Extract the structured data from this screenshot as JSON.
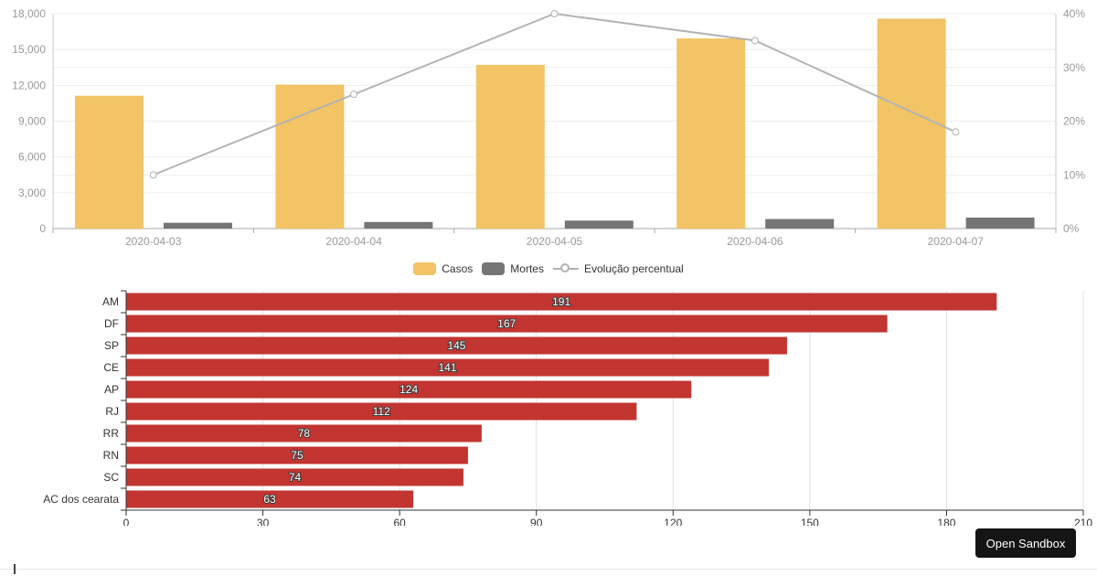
{
  "chart_data": [
    {
      "name": "casos-mortes-combo",
      "type": "bar",
      "subtype": "grouped bars + percentage line (dual axis)",
      "categories": [
        "2020-04-03",
        "2020-04-04",
        "2020-04-05",
        "2020-04-06",
        "2020-04-07"
      ],
      "series": [
        {
          "name": "Casos",
          "type": "bar",
          "axis": "left",
          "color": "#f2c465",
          "values": [
            11130,
            12056,
            13717,
            15927,
            17593
          ]
        },
        {
          "name": "Mortes",
          "type": "bar",
          "axis": "left",
          "color": "#757575",
          "values": [
            486,
            553,
            667,
            800,
            920
          ]
        },
        {
          "name": "Evolução percentual",
          "type": "line",
          "axis": "right",
          "color": "#b3b3b3",
          "marker": "open-circle",
          "values": [
            10,
            25,
            40,
            35,
            18
          ]
        }
      ],
      "left_axis": {
        "min": 0,
        "max": 18000,
        "step": 3000,
        "tick_labels": [
          "0",
          "3,000",
          "6,000",
          "9,000",
          "12,000",
          "15,000",
          "18,000"
        ]
      },
      "right_axis": {
        "min": 0,
        "max": 40,
        "step": 10,
        "tick_labels": [
          "0%",
          "10%",
          "20%",
          "30%",
          "40%"
        ]
      },
      "grid": true,
      "legend_position": "bottom",
      "title": ""
    },
    {
      "name": "states-horizontal-bars",
      "type": "bar",
      "orientation": "horizontal",
      "categories": [
        "AM",
        "DF",
        "SP",
        "CE",
        "AP",
        "RJ",
        "RR",
        "RN",
        "SC",
        "AC dos cearata"
      ],
      "values": [
        191,
        167,
        145,
        141,
        124,
        112,
        78,
        75,
        74,
        63
      ],
      "bar_color": "#c23531",
      "value_labels": [
        "191",
        "167",
        "145",
        "141",
        "124",
        "112",
        "78",
        "75",
        "74",
        "63"
      ],
      "value_label_style": "white text with dark outline, centered inside bar",
      "x_axis": {
        "min": 0,
        "max": 210,
        "step": 30,
        "tick_labels": [
          "0",
          "30",
          "60",
          "90",
          "120",
          "150",
          "180",
          "210"
        ]
      },
      "grid": true,
      "title": ""
    }
  ],
  "legend": {
    "items": [
      {
        "label": "Casos",
        "swatch": "round-rect",
        "color": "#f2c465"
      },
      {
        "label": "Mortes",
        "swatch": "round-rect",
        "color": "#757575"
      },
      {
        "label": "Evolução percentual",
        "swatch": "line-circle",
        "color": "#b3b3b3"
      }
    ]
  },
  "sandbox_button": {
    "label": "Open Sandbox"
  },
  "colors": {
    "casos": "#f2c465",
    "mortes": "#757575",
    "line": "#b3b3b3",
    "state_bar": "#c23531",
    "grid_light": "#eeeeee",
    "grid_mid": "#e0e0e0",
    "axis_light": "#cccccc",
    "axis_bottom": "#aaaaaa",
    "axis_dark": "#333333",
    "label_gray": "#999999",
    "label_dark": "#333333",
    "value_label_fill": "#ffffff",
    "value_label_stroke": "#3a3a3a"
  }
}
